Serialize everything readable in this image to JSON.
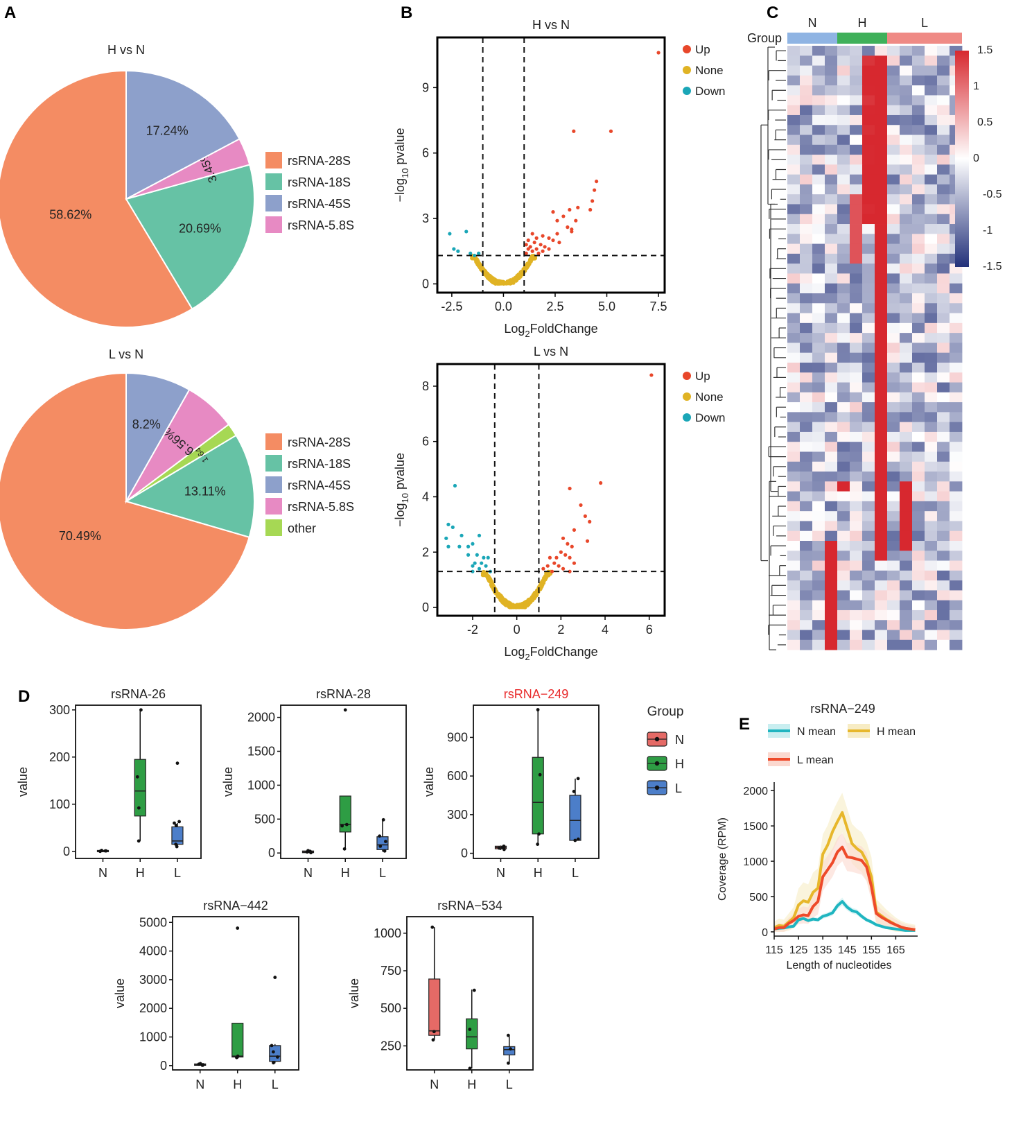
{
  "panel_letters": {
    "A": "A",
    "B": "B",
    "C": "C",
    "D": "D",
    "E": "E"
  },
  "colors": {
    "rsRNA-28S": "#f48c63",
    "rsRNA-18S": "#66c2a5",
    "rsRNA-45S": "#8da0cb",
    "rsRNA-5.8S": "#e78ac3",
    "other": "#a6d854",
    "up": "#e8472a",
    "none": "#e0b324",
    "down": "#1aa6b7",
    "groupN": "#e56a66",
    "groupH": "#2e9d44",
    "groupL": "#4c7ec9",
    "bandN": "#8fb4e3",
    "bandH": "#3fb05a",
    "bandL": "#ef8a85",
    "heat_low": "#23317a",
    "heat_mid": "#ffffff",
    "heat_high": "#d7282f",
    "lineN": "#1fb5c0",
    "lineH": "#e7b72b",
    "lineL": "#ee4a2a"
  },
  "chart_data": [
    {
      "id": "pie-h",
      "type": "pie",
      "title": "H vs N",
      "slices": [
        {
          "name": "rsRNA-28S",
          "value": 58.62,
          "label": "58.62%"
        },
        {
          "name": "rsRNA-18S",
          "value": 20.69,
          "label": "20.69%"
        },
        {
          "name": "rsRNA-5.8S",
          "value": 3.45,
          "label": "3.45%"
        },
        {
          "name": "rsRNA-45S",
          "value": 17.24,
          "label": "17.24%"
        }
      ],
      "legend": [
        "rsRNA-28S",
        "rsRNA-18S",
        "rsRNA-45S",
        "rsRNA-5.8S"
      ]
    },
    {
      "id": "pie-l",
      "type": "pie",
      "title": "L vs N",
      "slices": [
        {
          "name": "rsRNA-28S",
          "value": 70.49,
          "label": "70.49%"
        },
        {
          "name": "rsRNA-18S",
          "value": 13.11,
          "label": "13.11%"
        },
        {
          "name": "other",
          "value": 1.64,
          "label": "1.64%"
        },
        {
          "name": "rsRNA-5.8S",
          "value": 6.56,
          "label": "6.56%"
        },
        {
          "name": "rsRNA-45S",
          "value": 8.2,
          "label": "8.2%"
        }
      ],
      "legend": [
        "rsRNA-28S",
        "rsRNA-18S",
        "rsRNA-45S",
        "rsRNA-5.8S",
        "other"
      ]
    },
    {
      "id": "volcano-h",
      "type": "scatter",
      "title": "H vs N",
      "xlabel": "Log2FoldChange",
      "ylabel": "-log10 pvalue",
      "xlim": [
        -3.2,
        7.8
      ],
      "ylim": [
        -0.4,
        11.3
      ],
      "xticks": [
        -2.5,
        0,
        2.5,
        5,
        7.5
      ],
      "xtick_labels": [
        "-2.5",
        "0.0",
        "2.5",
        "5.0",
        "7.5"
      ],
      "yticks": [
        0,
        3,
        6,
        9
      ],
      "vlines": [
        -1,
        1
      ],
      "hline": 1.3,
      "legend": [
        "Up",
        "None",
        "Down"
      ],
      "points": {
        "up": [
          [
            7.5,
            10.6
          ],
          [
            5.2,
            7.0
          ],
          [
            3.4,
            7.0
          ],
          [
            4.5,
            4.7
          ],
          [
            4.4,
            4.3
          ],
          [
            4.3,
            3.8
          ],
          [
            3.6,
            3.5
          ],
          [
            3.2,
            3.4
          ],
          [
            4.2,
            3.4
          ],
          [
            2.4,
            3.3
          ],
          [
            2.9,
            3.1
          ],
          [
            3.5,
            2.9
          ],
          [
            2.6,
            2.9
          ],
          [
            3.1,
            2.6
          ],
          [
            3.3,
            2.5
          ],
          [
            2.6,
            2.3
          ],
          [
            1.4,
            2.3
          ],
          [
            1.9,
            2.2
          ],
          [
            3.3,
            2.4
          ],
          [
            2.2,
            2.1
          ],
          [
            1.6,
            2.1
          ],
          [
            1.2,
            2.0
          ],
          [
            2.4,
            2.0
          ],
          [
            1.5,
            1.9
          ],
          [
            2.7,
            1.9
          ],
          [
            1.1,
            1.8
          ],
          [
            1.8,
            1.8
          ],
          [
            1.3,
            1.7
          ],
          [
            2.0,
            1.7
          ],
          [
            1.6,
            1.6
          ],
          [
            1.2,
            1.6
          ],
          [
            2.2,
            1.6
          ],
          [
            1.9,
            1.5
          ],
          [
            1.4,
            1.5
          ],
          [
            1.1,
            1.4
          ],
          [
            1.7,
            1.4
          ]
        ],
        "down": [
          [
            -2.6,
            2.3
          ],
          [
            -1.8,
            2.4
          ],
          [
            -2.4,
            1.6
          ],
          [
            -2.2,
            1.5
          ],
          [
            -1.6,
            1.4
          ],
          [
            -1.2,
            1.4
          ],
          [
            -1.4,
            1.3
          ]
        ]
      },
      "none_cloud": {
        "n": 520,
        "width": 1.45,
        "xmax": 1.55,
        "noise": 0.22,
        "scale": 0.95
      }
    },
    {
      "id": "volcano-l",
      "type": "scatter",
      "title": "L vs N",
      "xlabel": "Log2FoldChange",
      "ylabel": "-log10 pvalue",
      "xlim": [
        -3.6,
        6.7
      ],
      "ylim": [
        -0.3,
        8.8
      ],
      "xticks": [
        -2,
        0,
        2,
        4,
        6
      ],
      "xtick_labels": [
        "-2",
        "0",
        "2",
        "4",
        "6"
      ],
      "yticks": [
        0,
        2,
        4,
        6,
        8
      ],
      "vlines": [
        -1,
        1
      ],
      "hline": 1.3,
      "legend": [
        "Up",
        "None",
        "Down"
      ],
      "points": {
        "up": [
          [
            6.1,
            8.4
          ],
          [
            3.8,
            4.5
          ],
          [
            2.4,
            4.3
          ],
          [
            2.9,
            3.7
          ],
          [
            3.1,
            3.3
          ],
          [
            3.3,
            3.1
          ],
          [
            2.6,
            2.8
          ],
          [
            3.2,
            2.4
          ],
          [
            2.1,
            2.5
          ],
          [
            2.3,
            2.3
          ],
          [
            2.5,
            2.2
          ],
          [
            2.0,
            2.0
          ],
          [
            2.2,
            1.9
          ],
          [
            1.8,
            1.8
          ],
          [
            2.4,
            1.8
          ],
          [
            1.5,
            1.8
          ],
          [
            2.6,
            1.6
          ],
          [
            1.7,
            1.6
          ],
          [
            1.9,
            1.5
          ],
          [
            1.4,
            1.5
          ],
          [
            2.1,
            1.4
          ],
          [
            1.2,
            1.4
          ],
          [
            1.6,
            1.3
          ],
          [
            2.4,
            1.3
          ]
        ],
        "down": [
          [
            -2.8,
            4.4
          ],
          [
            -3.1,
            3.0
          ],
          [
            -2.9,
            2.9
          ],
          [
            -2.5,
            2.6
          ],
          [
            -1.7,
            2.6
          ],
          [
            -3.2,
            2.5
          ],
          [
            -2.0,
            2.3
          ],
          [
            -3.1,
            2.2
          ],
          [
            -2.2,
            2.2
          ],
          [
            -2.6,
            2.2
          ],
          [
            -2.2,
            1.9
          ],
          [
            -1.8,
            1.9
          ],
          [
            -1.5,
            1.8
          ],
          [
            -1.3,
            1.8
          ],
          [
            -1.9,
            1.6
          ],
          [
            -1.6,
            1.6
          ],
          [
            -2.0,
            1.5
          ],
          [
            -1.4,
            1.5
          ],
          [
            -1.7,
            1.4
          ],
          [
            -2.0,
            1.3
          ],
          [
            -1.2,
            1.3
          ]
        ]
      },
      "none_cloud": {
        "n": 560,
        "width": 1.35,
        "xmax": 1.55,
        "noise": 0.2,
        "scale": 0.85
      }
    },
    {
      "id": "heatmap",
      "type": "heatmap",
      "group_label": "Group",
      "groups": [
        {
          "name": "N",
          "n": 4
        },
        {
          "name": "H",
          "n": 4
        },
        {
          "name": "L",
          "n": 6
        }
      ],
      "n_rows": 61,
      "scale_ticks": [
        1.5,
        1,
        0.5,
        0,
        -0.5,
        -1,
        -1.5
      ],
      "scale_tick_labels": [
        "1.5",
        "1",
        "0.5",
        "0",
        "-0.5",
        "-1",
        "-1.5"
      ],
      "vmin": -1.5,
      "vmax": 1.5
    },
    {
      "id": "box-26",
      "type": "box",
      "title": "rsRNA-26",
      "ylabel": "value",
      "ylim": [
        -15,
        310
      ],
      "yticks": [
        0,
        100,
        200,
        300
      ],
      "groups": [
        {
          "name": "N",
          "q1": 0,
          "median": 1,
          "q3": 2,
          "min": 0,
          "max": 2,
          "points": [
            0,
            1,
            2,
            1
          ]
        },
        {
          "name": "H",
          "q1": 75,
          "median": 128,
          "q3": 195,
          "min": 22,
          "max": 300,
          "points": [
            22,
            92,
            158,
            300
          ]
        },
        {
          "name": "L",
          "q1": 15,
          "median": 22,
          "q3": 52,
          "min": 8,
          "max": 60,
          "points": [
            10,
            15,
            55,
            60,
            63
          ],
          "outliers": [
            187
          ]
        }
      ]
    },
    {
      "id": "box-28",
      "type": "box",
      "title": "rsRNA-28",
      "ylabel": "value",
      "ylim": [
        -80,
        2180
      ],
      "yticks": [
        0,
        500,
        1000,
        1500,
        2000
      ],
      "groups": [
        {
          "name": "N",
          "q1": 5,
          "median": 15,
          "q3": 30,
          "min": 0,
          "max": 40,
          "points": [
            5,
            15,
            25,
            35
          ]
        },
        {
          "name": "H",
          "q1": 310,
          "median": 420,
          "q3": 840,
          "min": 60,
          "max": 840,
          "points": [
            60,
            400,
            420
          ],
          "outliers": [
            2110
          ]
        },
        {
          "name": "L",
          "q1": 50,
          "median": 120,
          "q3": 240,
          "min": 20,
          "max": 490,
          "points": [
            30,
            100,
            170,
            250,
            490
          ]
        }
      ]
    },
    {
      "id": "box-249",
      "type": "box",
      "title": "rsRNA−249",
      "title_color": "#e8292a",
      "ylabel": "value",
      "ylim": [
        -40,
        1150
      ],
      "yticks": [
        0,
        300,
        600,
        900
      ],
      "groups": [
        {
          "name": "N",
          "q1": 35,
          "median": 45,
          "q3": 55,
          "min": 25,
          "max": 60,
          "points": [
            30,
            45,
            55,
            40
          ]
        },
        {
          "name": "H",
          "q1": 150,
          "median": 395,
          "q3": 745,
          "min": 70,
          "max": 1115,
          "points": [
            70,
            150,
            610,
            1115
          ]
        },
        {
          "name": "L",
          "q1": 100,
          "median": 255,
          "q3": 450,
          "min": 90,
          "max": 580,
          "points": [
            100,
            110,
            480,
            580
          ]
        }
      ]
    },
    {
      "id": "box-442",
      "type": "box",
      "title": "rsRNA−442",
      "ylabel": "value",
      "ylim": [
        -150,
        5200
      ],
      "yticks": [
        0,
        1000,
        2000,
        3000,
        4000,
        5000
      ],
      "groups": [
        {
          "name": "N",
          "q1": 10,
          "median": 30,
          "q3": 60,
          "min": 0,
          "max": 80,
          "points": [
            10,
            30,
            50,
            70
          ]
        },
        {
          "name": "H",
          "q1": 300,
          "median": 330,
          "q3": 1480,
          "min": 250,
          "max": 1480,
          "points": [
            280,
            300,
            330
          ],
          "outliers": [
            4800
          ]
        },
        {
          "name": "L",
          "q1": 150,
          "median": 330,
          "q3": 700,
          "min": 80,
          "max": 750,
          "points": [
            100,
            300,
            480,
            700
          ],
          "outliers": [
            3080
          ]
        }
      ]
    },
    {
      "id": "box-534",
      "type": "box",
      "title": "rsRNA−534",
      "ylabel": "value",
      "ylim": [
        90,
        1110
      ],
      "yticks": [
        250,
        500,
        750,
        1000
      ],
      "groups": [
        {
          "name": "N",
          "q1": 320,
          "median": 350,
          "q3": 695,
          "min": 290,
          "max": 1040,
          "points": [
            290,
            345,
            1040
          ]
        },
        {
          "name": "H",
          "q1": 230,
          "median": 310,
          "q3": 430,
          "min": 100,
          "max": 625,
          "points": [
            100,
            360,
            620
          ]
        },
        {
          "name": "L",
          "q1": 190,
          "median": 225,
          "q3": 245,
          "min": 135,
          "max": 320,
          "points": [
            135,
            230,
            320
          ]
        }
      ]
    },
    {
      "id": "coverage",
      "type": "line",
      "title": "rsRNA−249",
      "xlabel": "Length of nucleotides",
      "ylabel": "Coverage (RPM)",
      "xlim": [
        115,
        174
      ],
      "ylim": [
        -60,
        2120
      ],
      "xticks": [
        115,
        125,
        135,
        145,
        155,
        165
      ],
      "yticks": [
        0,
        500,
        1000,
        1500,
        2000
      ],
      "x": [
        115,
        117,
        119,
        121,
        123,
        125,
        127,
        129,
        131,
        133,
        135,
        137,
        139,
        141,
        143,
        145,
        147,
        149,
        151,
        153,
        155,
        157,
        159,
        161,
        163,
        165,
        167,
        169,
        171,
        173
      ],
      "series": [
        {
          "name": "N mean",
          "color_key": "lineN",
          "values": [
            40,
            50,
            55,
            70,
            80,
            170,
            190,
            160,
            180,
            170,
            220,
            240,
            270,
            370,
            430,
            350,
            300,
            280,
            220,
            170,
            140,
            100,
            80,
            60,
            50,
            40,
            30,
            20,
            20,
            20
          ],
          "band": 60
        },
        {
          "name": "H mean",
          "color_key": "lineH",
          "values": [
            60,
            90,
            80,
            140,
            200,
            380,
            440,
            420,
            560,
            620,
            1100,
            1230,
            1420,
            1560,
            1690,
            1470,
            1250,
            1180,
            1130,
            1000,
            780,
            280,
            230,
            180,
            140,
            100,
            70,
            50,
            40,
            30
          ],
          "band": 280
        },
        {
          "name": "L mean",
          "color_key": "lineL",
          "values": [
            40,
            60,
            60,
            120,
            160,
            220,
            240,
            230,
            360,
            430,
            780,
            880,
            980,
            1130,
            1200,
            1060,
            1050,
            1030,
            1010,
            920,
            640,
            260,
            210,
            170,
            130,
            100,
            70,
            50,
            40,
            30
          ],
          "band": 200
        }
      ],
      "legend": [
        "N mean",
        "H mean",
        "L mean"
      ]
    }
  ],
  "box_legend": {
    "title": "Group",
    "items": [
      "N",
      "H",
      "L"
    ]
  }
}
